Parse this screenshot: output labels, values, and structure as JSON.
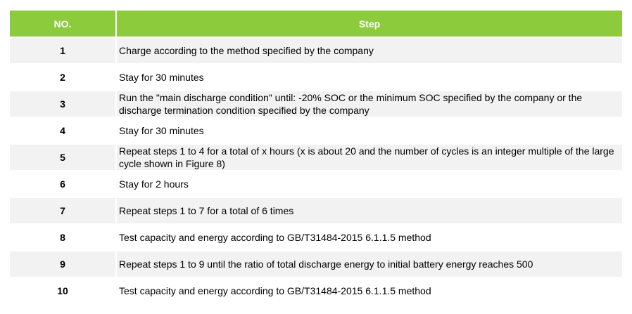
{
  "table": {
    "headers": {
      "no": "NO.",
      "step": "Step"
    },
    "rows": [
      {
        "no": "1",
        "step": "Charge according to the method specified by the company"
      },
      {
        "no": "2",
        "step": "Stay for 30 minutes"
      },
      {
        "no": "3",
        "step": "Run the \"main discharge condition\" until: -20% SOC or the minimum SOC specified by the company or the discharge termination condition specified by the company"
      },
      {
        "no": "4",
        "step": "Stay for 30 minutes"
      },
      {
        "no": "5",
        "step": "Repeat steps 1 to 4 for a total of x hours (x is about 20 and the number of cycles is an integer multiple of the large cycle shown in Figure 8)"
      },
      {
        "no": "6",
        "step": "Stay for 2 hours"
      },
      {
        "no": "7",
        "step": "Repeat steps 1 to 7 for a total of 6 times"
      },
      {
        "no": "8",
        "step": "Test capacity and energy according to GB/T31484-2015 6.1.1.5 method"
      },
      {
        "no": "9",
        "step": "Repeat steps 1 to 9 until the ratio of total discharge energy to initial battery energy reaches 500"
      },
      {
        "no": "10",
        "step": "Test capacity and energy according to GB/T31484-2015 6.1.1.5 method"
      }
    ]
  },
  "colors": {
    "header_bg": "#8ccc3c",
    "header_text": "#ffffff",
    "row_alt_bg": "#f2f2f2"
  }
}
